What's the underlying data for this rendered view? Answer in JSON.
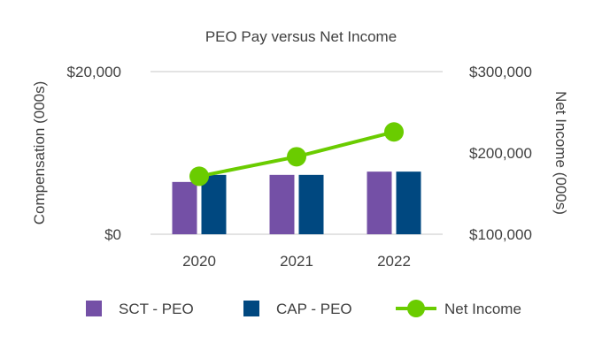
{
  "chart_data": {
    "type": "bar",
    "title": "PEO Pay versus Net Income",
    "categories": [
      "2020",
      "2021",
      "2022"
    ],
    "series": [
      {
        "name": "SCT - PEO",
        "type": "bar",
        "axis": "left",
        "color": "#7450a6",
        "values": [
          6430,
          7300,
          7700
        ]
      },
      {
        "name": "CAP - PEO",
        "type": "bar",
        "axis": "left",
        "color": "#004880",
        "values": [
          7300,
          7300,
          7700
        ]
      },
      {
        "name": "Net Income",
        "type": "line",
        "axis": "right",
        "color": "#6acc00",
        "values": [
          171300,
          195300,
          225800
        ]
      }
    ],
    "ylabel": "Compensation (000s)",
    "y2label": "Net Income (000s)",
    "ylim": [
      0,
      20000
    ],
    "y2lim": [
      100000,
      300000
    ],
    "yticks": [
      "$0",
      "$20,000"
    ],
    "y2ticks": [
      "$100,000",
      "$200,000",
      "$300,000"
    ],
    "grid": true,
    "legend": "bottom"
  }
}
